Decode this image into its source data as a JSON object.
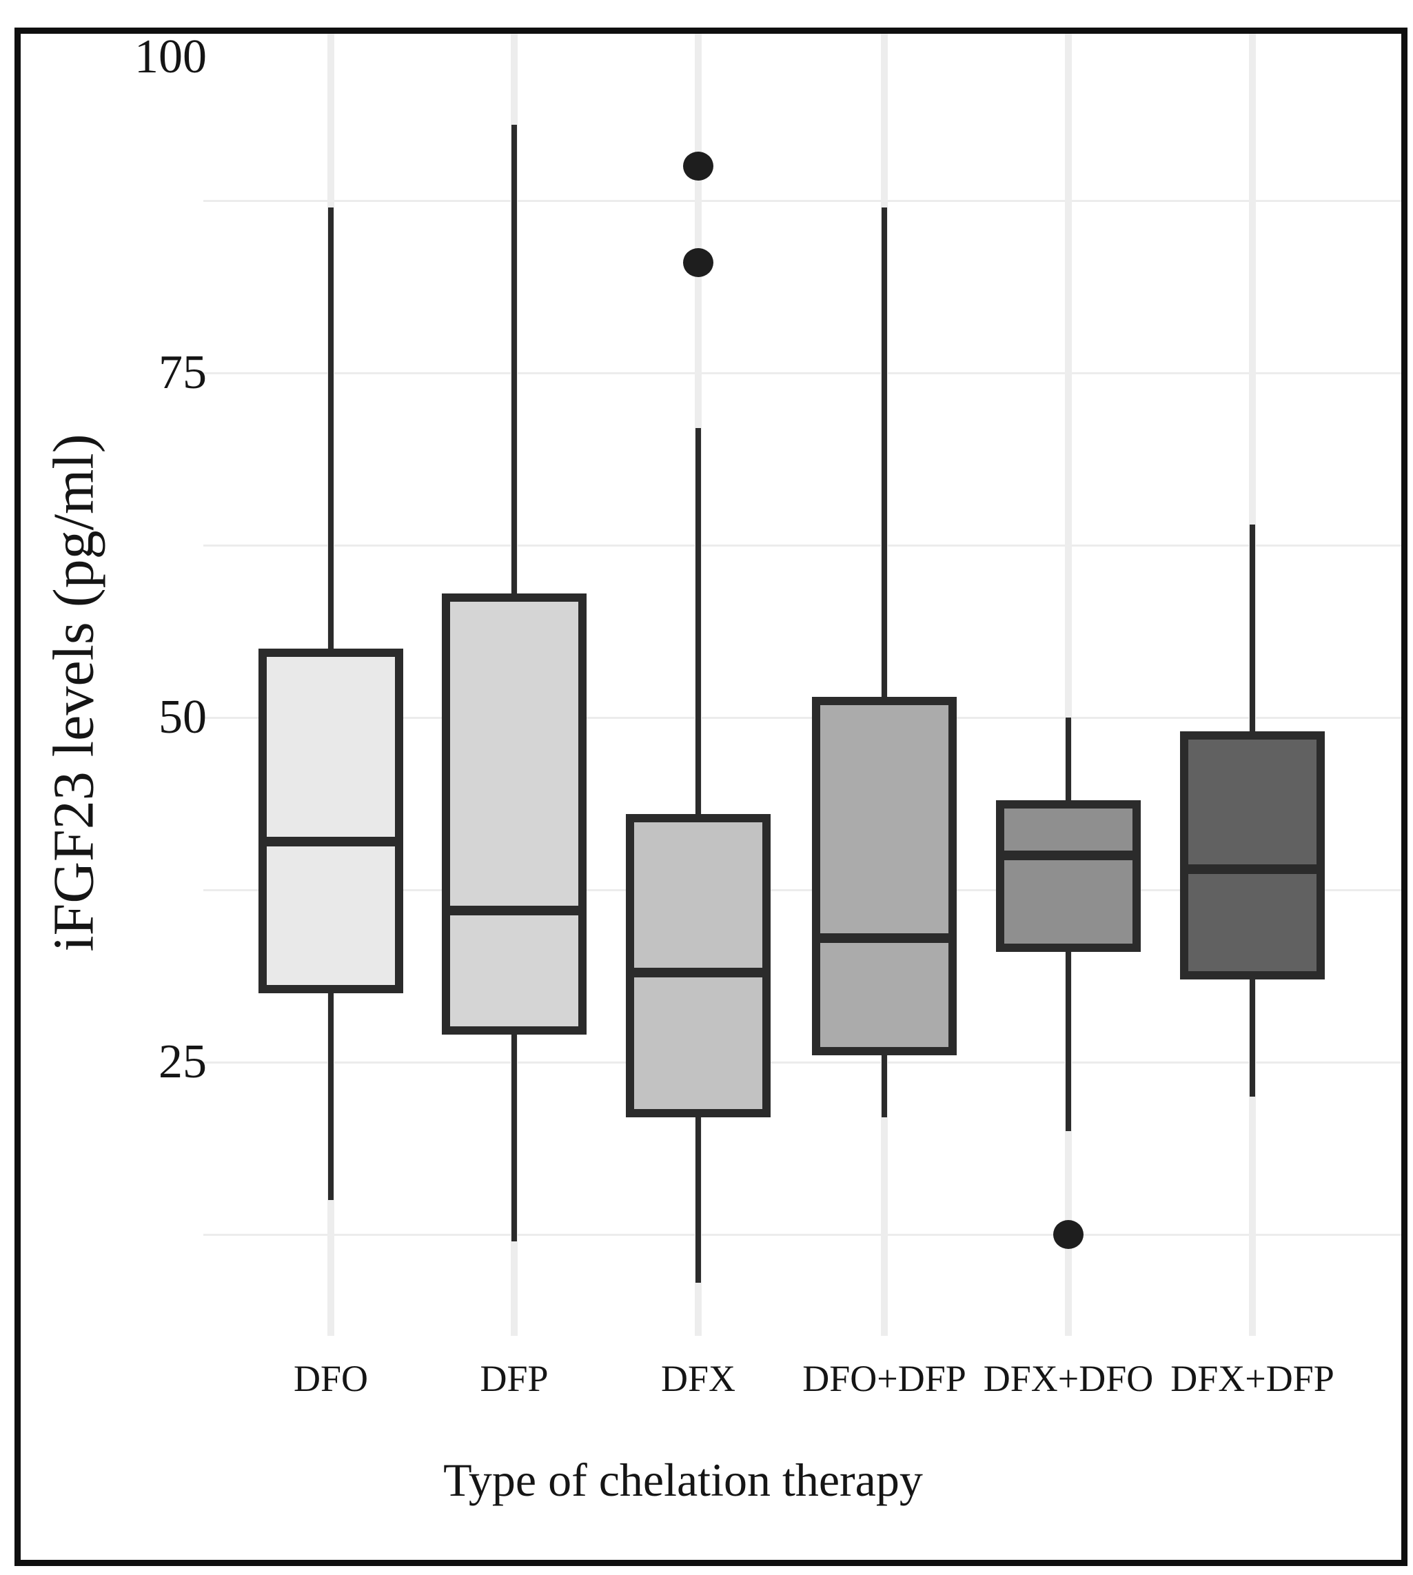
{
  "chart_data": {
    "type": "boxplot",
    "title": "",
    "xlabel": "Type of chelation therapy",
    "ylabel": "iFGF23 levels (pg/ml)",
    "ylim": [
      5,
      100
    ],
    "yticks": [
      100,
      75,
      50,
      25
    ],
    "gridlines_y": [
      87.5,
      75,
      62.5,
      50,
      37.5,
      25,
      12.5
    ],
    "grid": true,
    "legend": "none",
    "categories": [
      "DFO",
      "DFP",
      "DFX",
      "DFO+DFP",
      "DFX+DFO",
      "DFX+DFP"
    ],
    "series": [
      {
        "name": "DFO",
        "whisker_low": 15,
        "q1": 30,
        "median": 41,
        "q3": 55,
        "whisker_high": 87,
        "outliers": [],
        "fill": "#e9e9e9"
      },
      {
        "name": "DFP",
        "whisker_low": 12,
        "q1": 27,
        "median": 36,
        "q3": 59,
        "whisker_high": 93,
        "outliers": [],
        "fill": "#d5d5d5"
      },
      {
        "name": "DFX",
        "whisker_low": 9,
        "q1": 21,
        "median": 31.5,
        "q3": 43,
        "whisker_high": 71,
        "outliers": [
          90,
          83
        ],
        "fill": "#c2c2c2"
      },
      {
        "name": "DFO+DFP",
        "whisker_low": 21,
        "q1": 25.5,
        "median": 34,
        "q3": 51.5,
        "whisker_high": 87,
        "outliers": [],
        "fill": "#ababab"
      },
      {
        "name": "DFX+DFO",
        "whisker_low": 20,
        "q1": 33,
        "median": 40,
        "q3": 44,
        "whisker_high": 50,
        "outliers": [
          12.5
        ],
        "fill": "#8f8f8f"
      },
      {
        "name": "DFX+DFP",
        "whisker_low": 22.5,
        "q1": 31,
        "median": 39,
        "q3": 49,
        "whisker_high": 64,
        "outliers": [],
        "fill": "#616161"
      }
    ],
    "colors": {
      "box_stroke": "#2b2b2b",
      "whisker": "#2b2b2b",
      "median": "#2b2b2b",
      "outlier": "#1e1e1e",
      "gridline": "#ececec",
      "frame": "#0f0f0f",
      "text": "#151515",
      "background": "#ffffff"
    }
  }
}
